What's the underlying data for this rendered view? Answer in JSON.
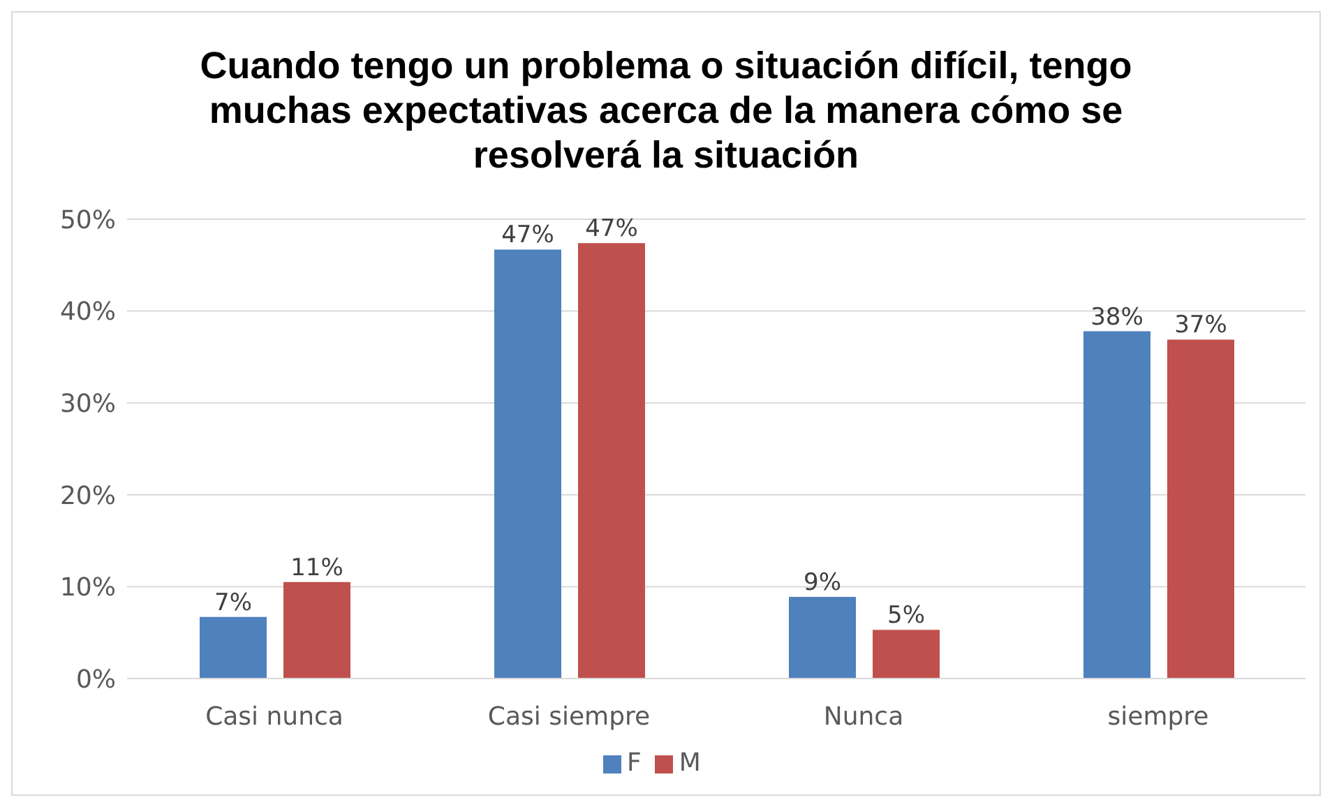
{
  "chart_data": {
    "type": "bar",
    "title": "Cuando tengo un problema o situación difícil, tengo muchas expectativas acerca de la manera cómo se resolverá la situación",
    "categories": [
      "Casi nunca",
      "Casi siempre",
      "Nunca",
      "siempre"
    ],
    "series": [
      {
        "name": "F",
        "color": "#4f81bd",
        "values": [
          6.7,
          46.7,
          8.9,
          37.8
        ],
        "value_labels": [
          "7%",
          "47%",
          "9%",
          "38%"
        ]
      },
      {
        "name": "M",
        "color": "#c0504d",
        "values": [
          10.5,
          47.4,
          5.3,
          36.9
        ],
        "value_labels": [
          "11%",
          "47%",
          "5%",
          "37%"
        ]
      }
    ],
    "ylim": [
      0,
      50
    ],
    "yticks": [
      {
        "value": 0,
        "label": "0%"
      },
      {
        "value": 10,
        "label": "10%"
      },
      {
        "value": 20,
        "label": "20%"
      },
      {
        "value": 30,
        "label": "30%"
      },
      {
        "value": 40,
        "label": "40%"
      },
      {
        "value": 50,
        "label": "50%"
      }
    ],
    "grid": "y",
    "legend": "bottom"
  }
}
